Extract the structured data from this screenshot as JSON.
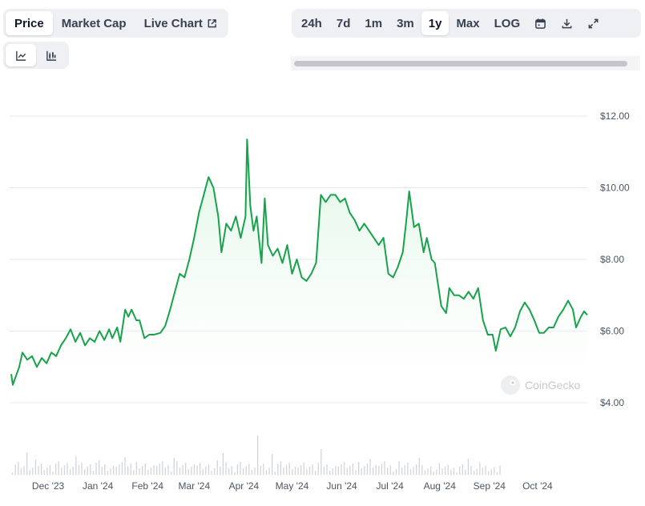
{
  "header": {
    "data_tabs": [
      {
        "label": "Price",
        "active": true
      },
      {
        "label": "Market Cap",
        "active": false
      },
      {
        "label": "Live Chart",
        "active": false,
        "icon": "external-link-icon"
      }
    ],
    "range_tabs": [
      {
        "label": "24h",
        "active": false
      },
      {
        "label": "7d",
        "active": false
      },
      {
        "label": "1m",
        "active": false
      },
      {
        "label": "3m",
        "active": false
      },
      {
        "label": "1y",
        "active": true
      },
      {
        "label": "Max",
        "active": false
      },
      {
        "label": "LOG",
        "active": false
      }
    ],
    "tool_icons": [
      "calendar-icon",
      "download-icon",
      "expand-icon"
    ],
    "chart_type_icons": [
      {
        "icon": "line-chart-icon",
        "active": true
      },
      {
        "icon": "candlestick-chart-icon",
        "active": false
      }
    ]
  },
  "watermark": "CoinGecko",
  "colors": {
    "line": "#16a34a",
    "fill_top": "#dcf5e2",
    "grid": "#e5e7eb",
    "volume": "#d1d5db"
  },
  "chart_data": {
    "type": "line",
    "y_axis_ticks": [
      "$4.00",
      "$6.00",
      "$8.00",
      "$10.00",
      "$12.00"
    ],
    "x_axis_ticks": [
      "Dec '23",
      "Jan '24",
      "Feb '24",
      "Mar '24",
      "Apr '24",
      "May '24",
      "Jun '24",
      "Jul '24",
      "Aug '24",
      "Sep '24",
      "Oct '24"
    ],
    "ylim": [
      4,
      12
    ],
    "grid": true,
    "volume_bars": true,
    "series": [
      {
        "points": [
          [
            "2023-11-08",
            4.8
          ],
          [
            "2023-11-09",
            4.5
          ],
          [
            "2023-11-13",
            5.0
          ],
          [
            "2023-11-15",
            5.4
          ],
          [
            "2023-11-18",
            5.2
          ],
          [
            "2023-11-21",
            5.3
          ],
          [
            "2023-11-24",
            5.0
          ],
          [
            "2023-11-27",
            5.25
          ],
          [
            "2023-11-30",
            5.1
          ],
          [
            "2023-12-03",
            5.4
          ],
          [
            "2023-12-06",
            5.3
          ],
          [
            "2023-12-09",
            5.6
          ],
          [
            "2023-12-12",
            5.8
          ],
          [
            "2023-12-15",
            6.05
          ],
          [
            "2023-12-18",
            5.7
          ],
          [
            "2023-12-21",
            5.95
          ],
          [
            "2023-12-24",
            5.6
          ],
          [
            "2023-12-27",
            5.8
          ],
          [
            "2023-12-30",
            5.7
          ],
          [
            "2024-01-02",
            6.0
          ],
          [
            "2024-01-05",
            5.75
          ],
          [
            "2024-01-08",
            6.05
          ],
          [
            "2024-01-10",
            5.8
          ],
          [
            "2024-01-13",
            6.1
          ],
          [
            "2024-01-15",
            5.7
          ],
          [
            "2024-01-18",
            6.6
          ],
          [
            "2024-01-20",
            6.4
          ],
          [
            "2024-01-22",
            6.6
          ],
          [
            "2024-01-25",
            6.3
          ],
          [
            "2024-01-27",
            6.3
          ],
          [
            "2024-01-30",
            5.8
          ],
          [
            "2024-02-02",
            5.9
          ],
          [
            "2024-02-05",
            5.9
          ],
          [
            "2024-02-09",
            5.95
          ],
          [
            "2024-02-12",
            6.15
          ],
          [
            "2024-02-15",
            6.6
          ],
          [
            "2024-02-18",
            7.1
          ],
          [
            "2024-02-21",
            7.6
          ],
          [
            "2024-02-24",
            7.5
          ],
          [
            "2024-02-27",
            8.0
          ],
          [
            "2024-03-01",
            8.6
          ],
          [
            "2024-03-04",
            9.3
          ],
          [
            "2024-03-07",
            9.8
          ],
          [
            "2024-03-10",
            10.3
          ],
          [
            "2024-03-13",
            10.0
          ],
          [
            "2024-03-16",
            9.2
          ],
          [
            "2024-03-18",
            8.2
          ],
          [
            "2024-03-21",
            9.0
          ],
          [
            "2024-03-24",
            8.8
          ],
          [
            "2024-03-27",
            9.2
          ],
          [
            "2024-03-30",
            8.6
          ],
          [
            "2024-04-02",
            9.2
          ],
          [
            "2024-04-03",
            11.35
          ],
          [
            "2024-04-05",
            9.5
          ],
          [
            "2024-04-07",
            8.8
          ],
          [
            "2024-04-09",
            9.2
          ],
          [
            "2024-04-12",
            7.9
          ],
          [
            "2024-04-14",
            9.7
          ],
          [
            "2024-04-16",
            8.4
          ],
          [
            "2024-04-19",
            8.1
          ],
          [
            "2024-04-22",
            8.3
          ],
          [
            "2024-04-25",
            7.9
          ],
          [
            "2024-04-28",
            8.4
          ],
          [
            "2024-05-01",
            7.6
          ],
          [
            "2024-05-04",
            8.0
          ],
          [
            "2024-05-07",
            7.5
          ],
          [
            "2024-05-10",
            7.4
          ],
          [
            "2024-05-13",
            7.6
          ],
          [
            "2024-05-16",
            7.9
          ],
          [
            "2024-05-19",
            9.8
          ],
          [
            "2024-05-22",
            9.6
          ],
          [
            "2024-05-25",
            9.8
          ],
          [
            "2024-05-28",
            9.8
          ],
          [
            "2024-05-31",
            9.6
          ],
          [
            "2024-06-03",
            9.7
          ],
          [
            "2024-06-06",
            9.3
          ],
          [
            "2024-06-09",
            9.1
          ],
          [
            "2024-06-12",
            8.8
          ],
          [
            "2024-06-15",
            9.0
          ],
          [
            "2024-06-18",
            8.8
          ],
          [
            "2024-06-21",
            8.6
          ],
          [
            "2024-06-24",
            8.4
          ],
          [
            "2024-06-27",
            8.6
          ],
          [
            "2024-06-30",
            7.6
          ],
          [
            "2024-07-03",
            7.5
          ],
          [
            "2024-07-06",
            7.8
          ],
          [
            "2024-07-09",
            8.2
          ],
          [
            "2024-07-11",
            9.0
          ],
          [
            "2024-07-13",
            9.9
          ],
          [
            "2024-07-16",
            8.9
          ],
          [
            "2024-07-19",
            9.0
          ],
          [
            "2024-07-22",
            8.2
          ],
          [
            "2024-07-24",
            8.6
          ],
          [
            "2024-07-27",
            8.0
          ],
          [
            "2024-07-29",
            7.9
          ],
          [
            "2024-08-02",
            6.7
          ],
          [
            "2024-08-05",
            6.5
          ],
          [
            "2024-08-07",
            7.2
          ],
          [
            "2024-08-10",
            7.0
          ],
          [
            "2024-08-13",
            7.0
          ],
          [
            "2024-08-16",
            6.9
          ],
          [
            "2024-08-19",
            7.1
          ],
          [
            "2024-08-22",
            6.9
          ],
          [
            "2024-08-25",
            7.2
          ],
          [
            "2024-08-28",
            6.3
          ],
          [
            "2024-08-31",
            5.9
          ],
          [
            "2024-09-03",
            5.9
          ],
          [
            "2024-09-05",
            5.45
          ],
          [
            "2024-09-08",
            6.05
          ],
          [
            "2024-09-11",
            6.1
          ],
          [
            "2024-09-14",
            5.85
          ],
          [
            "2024-09-17",
            6.1
          ],
          [
            "2024-09-20",
            6.55
          ],
          [
            "2024-09-23",
            6.8
          ],
          [
            "2024-09-26",
            6.6
          ],
          [
            "2024-09-29",
            6.3
          ],
          [
            "2024-10-02",
            5.95
          ],
          [
            "2024-10-05",
            5.95
          ],
          [
            "2024-10-08",
            6.1
          ],
          [
            "2024-10-11",
            6.1
          ],
          [
            "2024-10-14",
            6.4
          ],
          [
            "2024-10-17",
            6.6
          ],
          [
            "2024-10-20",
            6.85
          ],
          [
            "2024-10-23",
            6.6
          ],
          [
            "2024-10-25",
            6.1
          ],
          [
            "2024-10-28",
            6.4
          ],
          [
            "2024-10-30",
            6.55
          ],
          [
            "2024-11-01",
            6.45
          ]
        ]
      }
    ]
  }
}
